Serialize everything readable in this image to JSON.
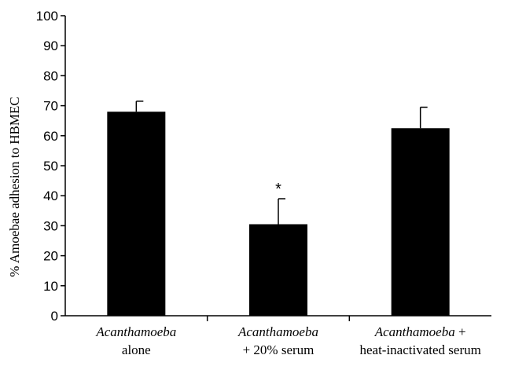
{
  "chart_data": {
    "type": "bar",
    "categories": [
      {
        "line1": "Acanthamoeba",
        "line2": "alone"
      },
      {
        "line1": "Acanthamoeba",
        "line2": "+ 20% serum"
      },
      {
        "line1": "Acanthamoeba +",
        "line2": "heat-inactivated serum"
      }
    ],
    "values": [
      68,
      30.5,
      62.5
    ],
    "error_upper": [
      71.5,
      39,
      69.5
    ],
    "annotations": [
      "",
      "*",
      ""
    ],
    "ylabel": "% Amoebae adhesion to HBMEC",
    "ylim": [
      0,
      100
    ],
    "yticks": [
      0,
      10,
      20,
      30,
      40,
      50,
      60,
      70,
      80,
      90,
      100
    ],
    "grid": false,
    "bar_color": "#000000"
  }
}
